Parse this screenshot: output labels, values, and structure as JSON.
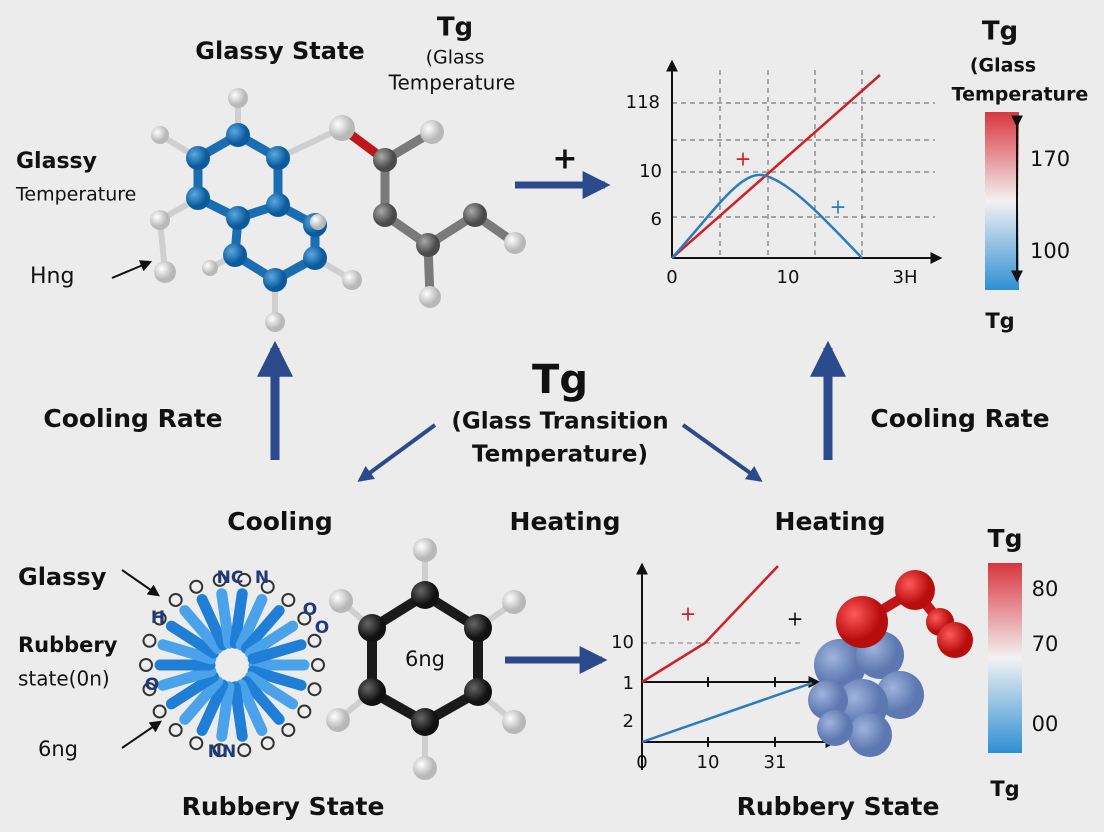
{
  "top_left": {
    "title": "Glassy State",
    "side_title": "Glassy",
    "side_subtitle": "Temperature",
    "pointer_label": "Hng"
  },
  "top_middle": {
    "line1": "Tg",
    "line2": "(Glass",
    "line3": "Temperature",
    "arrow_label": "+"
  },
  "top_chart": {
    "yticks": [
      "118",
      "10",
      "6"
    ],
    "xticks": [
      "0",
      "10",
      "3H"
    ],
    "markers": [
      "+",
      "+"
    ]
  },
  "top_colorbar": {
    "title_line1": "Tg",
    "title_line2": "(Glass",
    "title_line3": "Temperature",
    "ticks": [
      "170",
      "100"
    ],
    "bottom_label": "Tg"
  },
  "center": {
    "title": "Tg",
    "line2": "(Glass Transition",
    "line3": "Temperature)"
  },
  "side_labels": {
    "left": "Cooling Rate",
    "right": "Cooling Rate"
  },
  "process_labels": {
    "cooling": "Cooling",
    "heating_middle": "Heating",
    "heating_right": "Heating"
  },
  "bottom_left": {
    "glassy": "Glassy",
    "rubbery": "Rubbery",
    "state": "state(0n)",
    "pointer_label": "6ng",
    "title": "Rubbery State",
    "atom_labels": [
      "NC",
      "N",
      "NN",
      "H",
      "O",
      "O",
      "O"
    ]
  },
  "bottom_molecule": {
    "label": "6ng"
  },
  "bottom_chart": {
    "yticks": [
      "10",
      "1",
      "2"
    ],
    "xticks": [
      "0",
      "10",
      "31"
    ],
    "markers": [
      "+",
      "+"
    ],
    "title": "Rubbery State"
  },
  "bottom_colorbar": {
    "title": "Tg",
    "ticks": [
      "80",
      "70",
      "00"
    ],
    "bottom_label": "Tg"
  }
}
